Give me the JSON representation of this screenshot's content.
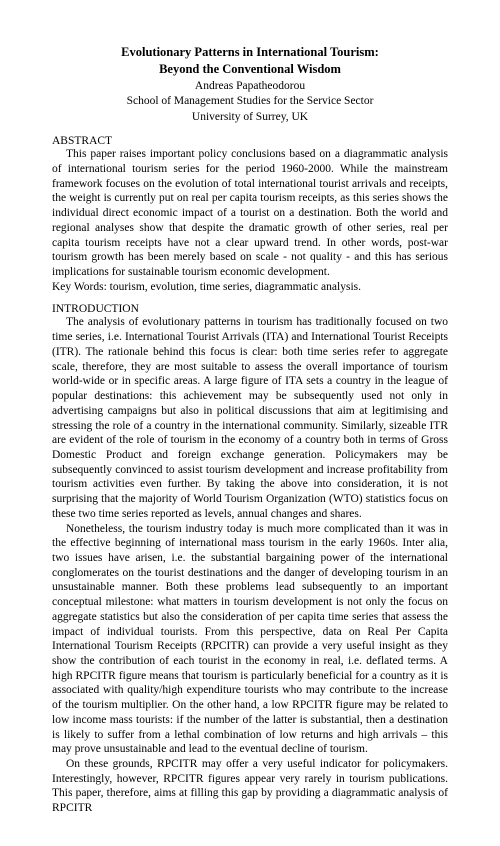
{
  "title_line1": "Evolutionary Patterns in International Tourism:",
  "title_line2": "Beyond the Conventional Wisdom",
  "author": "Andreas Papatheodorou",
  "affiliation1": "School of Management Studies for the Service Sector",
  "affiliation2": "University of Surrey, UK",
  "sections": {
    "abstract": {
      "header": "ABSTRACT",
      "body": "This paper raises important policy conclusions based on a diagrammatic analysis of international tourism series for the period 1960-2000.  While the mainstream framework focuses on the evolution of total international tourist arrivals and receipts, the weight is currently put on real per capita tourism receipts, as this series shows the individual direct economic impact of a tourist on a destination.  Both the world and regional analyses show that despite the dramatic growth of other series, real per capita tourism receipts have not a clear upward trend.  In other words, post-war tourism growth has been merely based on scale - not quality - and this has serious implications for sustainable tourism economic development.",
      "keywords": "Key Words: tourism, evolution, time series, diagrammatic analysis."
    },
    "intro": {
      "header": "INTRODUCTION",
      "p1": "The analysis of evolutionary patterns in tourism has traditionally focused on two time series, i.e. International Tourist Arrivals (ITA) and International Tourist Receipts (ITR).  The rationale behind this focus is clear: both time series refer to aggregate scale, therefore, they are most suitable to assess the overall importance of tourism world-wide or in specific areas.  A large figure of ITA sets a country in the league of popular destinations: this achievement may be subsequently used not only in advertising campaigns but also in political discussions that aim at legitimising and stressing the role of a country in the international community.  Similarly, sizeable ITR are evident of the role of tourism in the economy of a country both in terms of Gross Domestic Product and foreign exchange generation.  Policymakers may be subsequently convinced to assist tourism development and increase profitability from tourism activities even further.  By taking the above into consideration, it is not surprising that the majority of World Tourism Organization (WTO) statistics focus on these two time series reported as levels, annual changes and shares.",
      "p2": "Nonetheless, the tourism industry today is much more complicated than it was in the effective beginning of international mass tourism in the early 1960s.  Inter alia, two issues have arisen, i.e. the substantial bargaining power of the international conglomerates on the tourist destinations and the danger of developing tourism in an unsustainable manner.  Both these problems lead subsequently to an important conceptual milestone: what matters in tourism development is not only the focus on aggregate statistics but also the consideration of per capita time series that assess the impact of individual tourists.  From this perspective, data on Real Per Capita International Tourism Receipts (RPCITR) can provide a very useful insight as they show the contribution of each tourist in the economy in real, i.e. deflated terms.  A high RPCITR figure means that tourism is particularly beneficial for a country as it is associated with quality/high expenditure tourists who may contribute to the increase of the tourism multiplier.  On the other hand, a low RPCITR figure may be related to low income mass tourists: if the number of the latter is substantial, then a destination is likely to suffer from a lethal combination of low returns and high arrivals – this may prove unsustainable and lead to the eventual decline of tourism.",
      "p3": "On these grounds, RPCITR may offer a very useful indicator for policymakers.  Interestingly, however, RPCITR figures appear very rarely in tourism publications.  This paper, therefore, aims at filling this gap by providing a diagrammatic analysis of RPCITR"
    }
  }
}
